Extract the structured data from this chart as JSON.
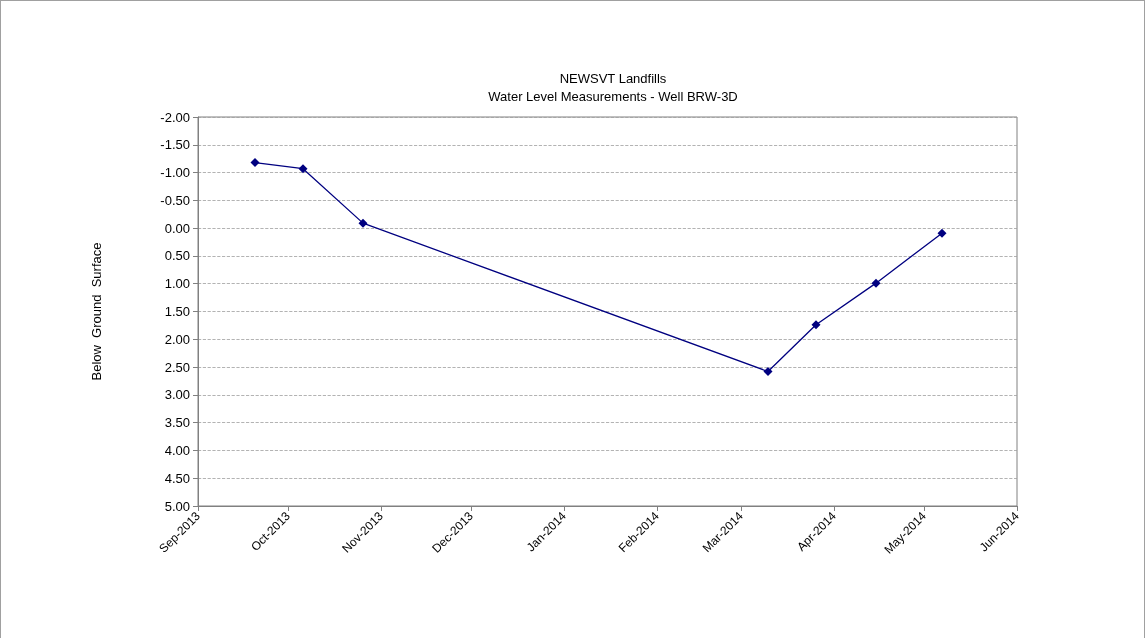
{
  "chart_data": {
    "type": "line",
    "title": "NEWSVT Landfills",
    "subtitle": "Water Level Measurements - Well BRW-3D",
    "ylabel": "Below  Ground  Surface",
    "x": [
      "2013-09-20",
      "2013-10-06",
      "2013-10-26",
      "2014-03-10",
      "2014-03-26",
      "2014-04-15",
      "2014-05-07"
    ],
    "series": [
      {
        "color": "#000080",
        "values": [
          -1.18,
          -1.07,
          -0.09,
          2.58,
          1.74,
          0.99,
          0.09
        ]
      }
    ],
    "xlim": [
      "2013-09-01",
      "2014-06-01"
    ],
    "xticks": [
      {
        "value": "2013-09-01",
        "label": "Sep-2013"
      },
      {
        "value": "2013-10-01",
        "label": "Oct-2013"
      },
      {
        "value": "2013-11-01",
        "label": "Nov-2013"
      },
      {
        "value": "2013-12-01",
        "label": "Dec-2013"
      },
      {
        "value": "2014-01-01",
        "label": "Jan-2014"
      },
      {
        "value": "2014-02-01",
        "label": "Feb-2014"
      },
      {
        "value": "2014-03-01",
        "label": "Mar-2014"
      },
      {
        "value": "2014-04-01",
        "label": "Apr-2014"
      },
      {
        "value": "2014-05-01",
        "label": "May-2014"
      },
      {
        "value": "2014-06-01",
        "label": "Jun-2014"
      }
    ],
    "ylim": [
      5,
      -2
    ],
    "yticks": [
      {
        "value": -2,
        "label": "-2.00"
      },
      {
        "value": -1.5,
        "label": "-1.50"
      },
      {
        "value": -1,
        "label": "-1.00"
      },
      {
        "value": -0.5,
        "label": "-0.50"
      },
      {
        "value": 0,
        "label": "0.00"
      },
      {
        "value": 0.5,
        "label": "0.50"
      },
      {
        "value": 1,
        "label": "1.00"
      },
      {
        "value": 1.5,
        "label": "1.50"
      },
      {
        "value": 2,
        "label": "2.00"
      },
      {
        "value": 2.5,
        "label": "2.50"
      },
      {
        "value": 3,
        "label": "3.00"
      },
      {
        "value": 3.5,
        "label": "3.50"
      },
      {
        "value": 4,
        "label": "4.00"
      },
      {
        "value": 4.5,
        "label": "4.50"
      },
      {
        "value": 5,
        "label": "5.00"
      }
    ],
    "grid": "y",
    "marker": "diamond",
    "line_style": "solid"
  }
}
